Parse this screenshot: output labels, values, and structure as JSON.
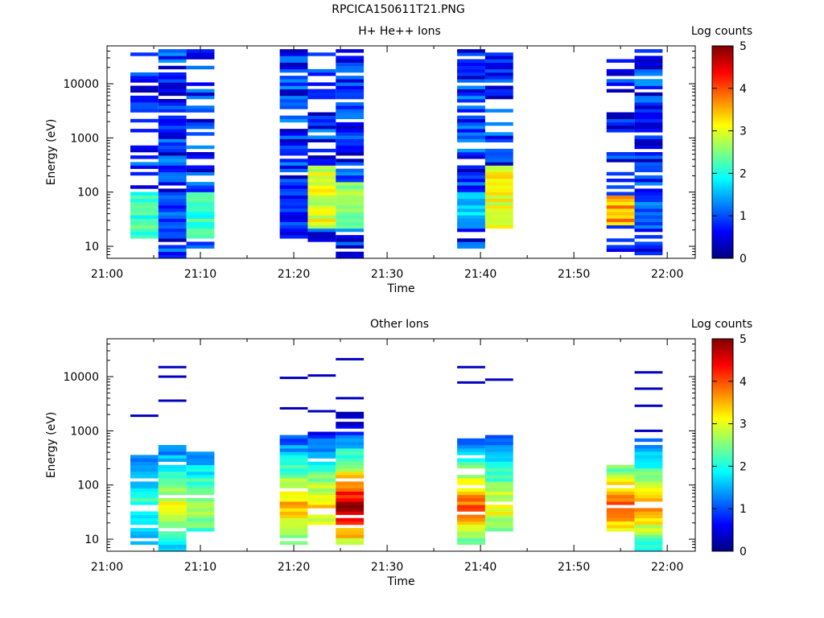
{
  "window_title": "RPCICA150611T21.PNG",
  "colorscale": [
    "#00007f",
    "#0000ff",
    "#007fff",
    "#00ffff",
    "#7fff7f",
    "#ffff00",
    "#ff7f00",
    "#ff0000",
    "#7f0000"
  ],
  "chart_data": [
    {
      "type": "heatmap",
      "title": "H+ He++ Ions",
      "xlabel": "Time",
      "ylabel": "Energy (eV)",
      "yscale": "log",
      "ylim": [
        6,
        50000
      ],
      "xlim": [
        "21:00",
        "22:03"
      ],
      "xticks": [
        "21:00",
        "21:10",
        "21:20",
        "21:30",
        "21:40",
        "21:50",
        "22:00"
      ],
      "yticks": [
        "10",
        "100",
        "1000",
        "10000"
      ],
      "colorbar": {
        "label": "Log counts",
        "range": [
          0,
          5
        ],
        "ticks": [
          "0",
          "1",
          "2",
          "3",
          "4",
          "5"
        ]
      },
      "columns": [
        {
          "time": "21:04",
          "width_min": 3.2,
          "e_min": 15,
          "e_max": 35000,
          "low_band": [
            15,
            100,
            2.1
          ],
          "density": 0.45
        },
        {
          "time": "21:07",
          "width_min": 3.2,
          "e_min": 6,
          "e_max": 40000,
          "low_band": [
            15,
            100,
            0.9
          ],
          "density": 0.85
        },
        {
          "time": "21:10",
          "width_min": 3.2,
          "e_min": 10,
          "e_max": 38000,
          "low_band": [
            15,
            100,
            2.2
          ],
          "density": 0.6
        },
        {
          "time": "21:20",
          "width_min": 3.2,
          "e_min": 15,
          "e_max": 40000,
          "low_band": [
            15,
            100,
            0.8
          ],
          "density": 0.8
        },
        {
          "time": "21:23",
          "width_min": 3.2,
          "e_min": 9,
          "e_max": 35000,
          "low_band": [
            20,
            300,
            3.0
          ],
          "density": 0.55
        },
        {
          "time": "21:26",
          "width_min": 3.2,
          "e_min": 6,
          "e_max": 38000,
          "low_band": [
            20,
            150,
            2.5
          ],
          "density": 0.8
        },
        {
          "time": "21:39",
          "width_min": 3.2,
          "e_min": 9,
          "e_max": 40000,
          "low_band": [
            20,
            100,
            1.6
          ],
          "density": 0.85
        },
        {
          "time": "21:42",
          "width_min": 3.2,
          "e_min": 15,
          "e_max": 35000,
          "low_band": [
            20,
            300,
            3.0
          ],
          "density": 0.55
        },
        {
          "time": "21:55",
          "width_min": 3.2,
          "e_min": 6,
          "e_max": 40000,
          "low_band": [
            25,
            90,
            3.6
          ],
          "density": 0.4
        },
        {
          "time": "21:58",
          "width_min": 3.2,
          "e_min": 6,
          "e_max": 40000,
          "low_band": [
            20,
            100,
            1.1
          ],
          "density": 0.85
        }
      ]
    },
    {
      "type": "heatmap",
      "title": "Other Ions",
      "xlabel": "Time",
      "ylabel": "Energy (eV)",
      "yscale": "log",
      "ylim": [
        6,
        50000
      ],
      "xlim": [
        "21:00",
        "22:03"
      ],
      "xticks": [
        "21:00",
        "21:10",
        "21:20",
        "21:30",
        "21:40",
        "21:50",
        "22:00"
      ],
      "yticks": [
        "10",
        "100",
        "1000",
        "10000"
      ],
      "colorbar": {
        "label": "Log counts",
        "range": [
          0,
          5
        ],
        "ticks": [
          "0",
          "1",
          "2",
          "3",
          "4",
          "5"
        ]
      },
      "columns": [
        {
          "time": "21:04",
          "width_min": 3.2,
          "e_min": 9,
          "e_max": 320,
          "peak": 1.9,
          "isolated": [
            1900
          ]
        },
        {
          "time": "21:07",
          "width_min": 3.2,
          "e_min": 6,
          "e_max": 500,
          "peak": 2.8,
          "isolated": [
            3600,
            10000,
            15000
          ]
        },
        {
          "time": "21:10",
          "width_min": 3.2,
          "e_min": 15,
          "e_max": 420,
          "peak": 2.6,
          "isolated": []
        },
        {
          "time": "21:20",
          "width_min": 3.2,
          "e_min": 9,
          "e_max": 750,
          "peak": 3.3,
          "isolated": [
            2600,
            9500
          ]
        },
        {
          "time": "21:23",
          "width_min": 3.2,
          "e_min": 20,
          "e_max": 950,
          "peak": 3.2,
          "isolated": [
            2300,
            10500
          ]
        },
        {
          "time": "21:26",
          "width_min": 3.2,
          "e_min": 9,
          "e_max": 2000,
          "peak": 4.6,
          "isolated": [
            4000,
            21000
          ]
        },
        {
          "time": "21:39",
          "width_min": 3.2,
          "e_min": 9,
          "e_max": 700,
          "peak": 3.7,
          "isolated": [
            7800,
            15000
          ]
        },
        {
          "time": "21:42",
          "width_min": 3.2,
          "e_min": 15,
          "e_max": 750,
          "peak": 2.9,
          "isolated": [
            8800
          ]
        },
        {
          "time": "21:55",
          "width_min": 3.2,
          "e_min": 15,
          "e_max": 230,
          "peak": 3.8,
          "isolated": []
        },
        {
          "time": "21:58",
          "width_min": 3.2,
          "e_min": 6,
          "e_max": 650,
          "peak": 3.4,
          "isolated": [
            1000,
            2900,
            6000,
            12000
          ]
        }
      ]
    }
  ]
}
